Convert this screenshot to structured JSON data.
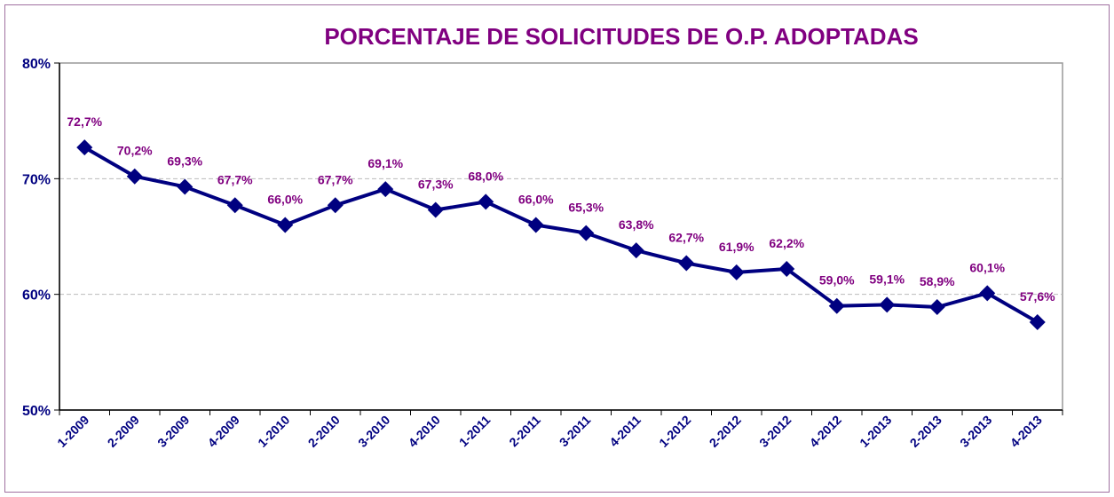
{
  "chart_data": {
    "type": "line",
    "title": "PORCENTAJE DE SOLICITUDES DE O.P. ADOPTADAS",
    "categories": [
      "1-2009",
      "2-2009",
      "3-2009",
      "4-2009",
      "1-2010",
      "2-2010",
      "3-2010",
      "4-2010",
      "1-2011",
      "2-2011",
      "3-2011",
      "4-2011",
      "1-2012",
      "2-2012",
      "3-2012",
      "4-2012",
      "1-2013",
      "2-2013",
      "3-2013",
      "4-2013"
    ],
    "series": [
      {
        "name": "Porcentaje",
        "color": "#000080",
        "values": [
          72.7,
          70.2,
          69.3,
          67.7,
          66.0,
          67.7,
          69.1,
          67.3,
          68.0,
          66.0,
          65.3,
          63.8,
          62.7,
          61.9,
          62.2,
          59.0,
          59.1,
          58.9,
          60.1,
          57.6
        ],
        "value_labels": [
          "72,7%",
          "70,2%",
          "69,3%",
          "67,7%",
          "66,0%",
          "67,7%",
          "69,1%",
          "67,3%",
          "68,0%",
          "66,0%",
          "65,3%",
          "63,8%",
          "62,7%",
          "61,9%",
          "62,2%",
          "59,0%",
          "59,1%",
          "58,9%",
          "60,1%",
          "57,6%"
        ]
      }
    ],
    "ylim": [
      50,
      80
    ],
    "yticks": [
      {
        "value": 50,
        "label": "50%"
      },
      {
        "value": 60,
        "label": "60%"
      },
      {
        "value": 70,
        "label": "70%"
      },
      {
        "value": 80,
        "label": "80%"
      }
    ],
    "grid": true
  }
}
